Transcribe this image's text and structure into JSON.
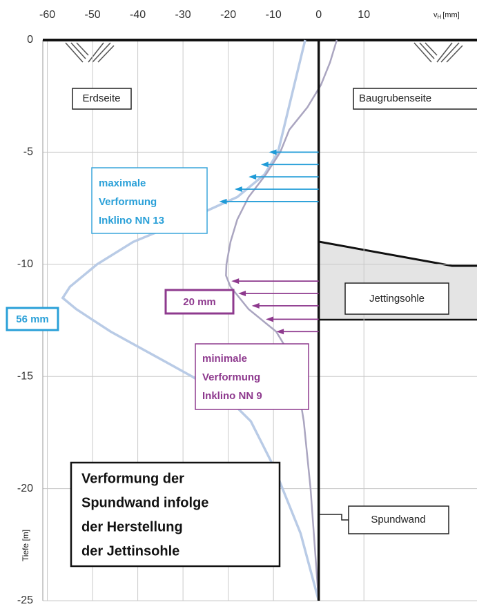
{
  "chart_data": {
    "type": "line",
    "x_label": "v",
    "x_label_sub": "H",
    "x_label_unit": "[mm]",
    "y_label": "Tiefe [m]",
    "xlim": [
      -61,
      35
    ],
    "ylim": [
      0,
      -25
    ],
    "xticks": [
      -60,
      -50,
      -40,
      -30,
      -20,
      -10,
      0,
      10
    ],
    "yticks": [
      0,
      -5,
      -10,
      -15,
      -20,
      -25
    ],
    "grid": true,
    "series": [
      {
        "color": "#b9cbe6",
        "x": [
          -3,
          -9,
          -12,
          -18,
          -29,
          -41,
          -49,
          -55,
          -56.6,
          -53.6,
          -46,
          -37,
          -28,
          -20,
          -15,
          -12.5,
          -10,
          -8,
          -4,
          0
        ],
        "y": [
          0,
          -5,
          -6,
          -7,
          -8,
          -9,
          -10,
          -11,
          -11.5,
          -12,
          -13,
          -14,
          -15,
          -16,
          -17,
          -18,
          -19,
          -20,
          -22,
          -25
        ]
      },
      {
        "color": "#aaa5c0",
        "x": [
          4,
          2.5,
          0.5,
          -2.5,
          -6.5,
          -8.5,
          -11.7,
          -15.5,
          -18,
          -19.5,
          -20.4,
          -20.5,
          -19.5,
          -15.5,
          -9.4,
          -6.4,
          -4.9,
          -3.3,
          -1.8,
          0
        ],
        "y": [
          0,
          -1,
          -2,
          -3,
          -4,
          -5,
          -6,
          -7,
          -8,
          -9,
          -10,
          -10.5,
          -11,
          -12,
          -13,
          -14,
          -15,
          -17,
          -20,
          -25
        ]
      }
    ],
    "arrows": [
      {
        "color": "#1f9bd7",
        "x": [
          -11,
          -12.8,
          -15.5,
          -18.6,
          -22
        ],
        "y": [
          -5,
          -5.55,
          -6.1,
          -6.65,
          -7.2
        ]
      },
      {
        "color": "#8e3a8e",
        "x": [
          -19.3,
          -17.8,
          -14.8,
          -11.7,
          -9.4
        ],
        "y": [
          -10.75,
          -11.3,
          -11.85,
          -12.45,
          -13
        ]
      }
    ],
    "labels": {
      "erdseite": "Erdseite",
      "baugrube": "Baugrubenseite",
      "max": [
        "maximale",
        "Verformung",
        "Inklino NN 13"
      ],
      "max_value": "56 mm",
      "min_value": "20 mm",
      "min": [
        "minimale",
        "Verformung",
        "Inklino NN 9"
      ],
      "jetting": "Jettingsohle",
      "wall": "Spundwand",
      "title": [
        "Verformung der",
        "Spundwand infolge",
        "der Herstellung",
        "der Jettinsohle"
      ]
    }
  }
}
